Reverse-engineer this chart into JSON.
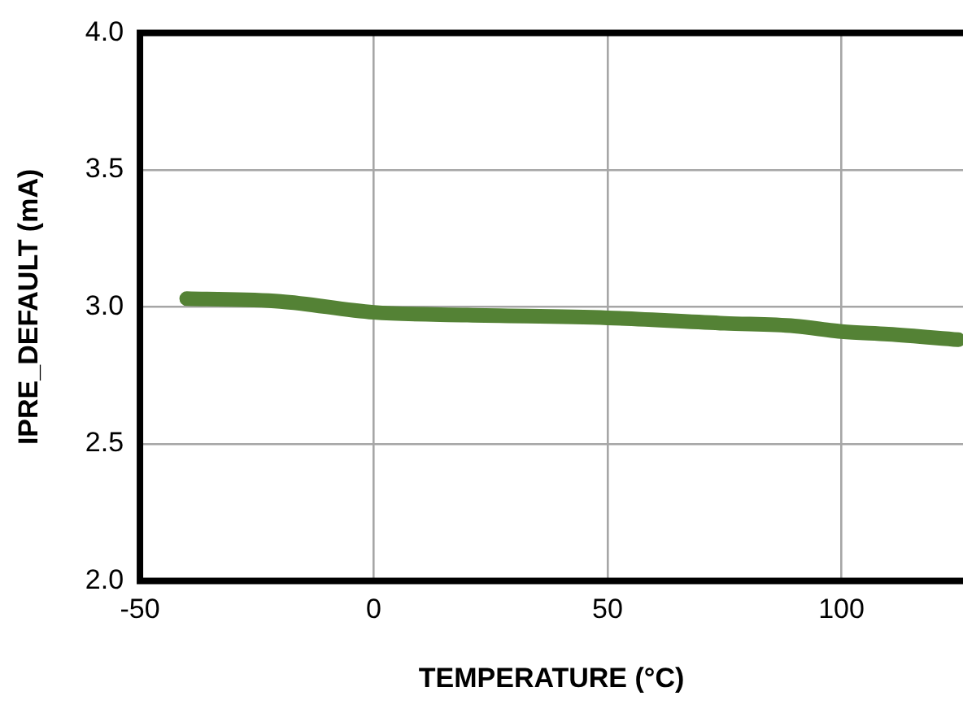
{
  "chart_data": {
    "type": "line",
    "xlabel": "TEMPERATURE (°C)",
    "ylabel": "IPRE_DEFAULT (mA)",
    "x": [
      -40,
      -20,
      0,
      20,
      50,
      75,
      90,
      100,
      110,
      125
    ],
    "series": [
      {
        "color": "#548235",
        "values": [
          3.03,
          3.02,
          2.98,
          2.97,
          2.96,
          2.94,
          2.93,
          2.91,
          2.9,
          2.88
        ]
      }
    ],
    "xlim": [
      -50,
      126
    ],
    "xticks": [
      -50,
      0,
      50,
      100
    ],
    "ylim": [
      2,
      4
    ],
    "yticks": [
      {
        "value": 2,
        "label": "2.0"
      },
      {
        "value": 2.5,
        "label": "2.5"
      },
      {
        "value": 3,
        "label": "3.0"
      },
      {
        "value": 3.5,
        "label": "3.5"
      },
      {
        "value": 4,
        "label": "4.0"
      }
    ],
    "grid": true,
    "legend": false,
    "marker": "none",
    "line_style": "solid"
  }
}
